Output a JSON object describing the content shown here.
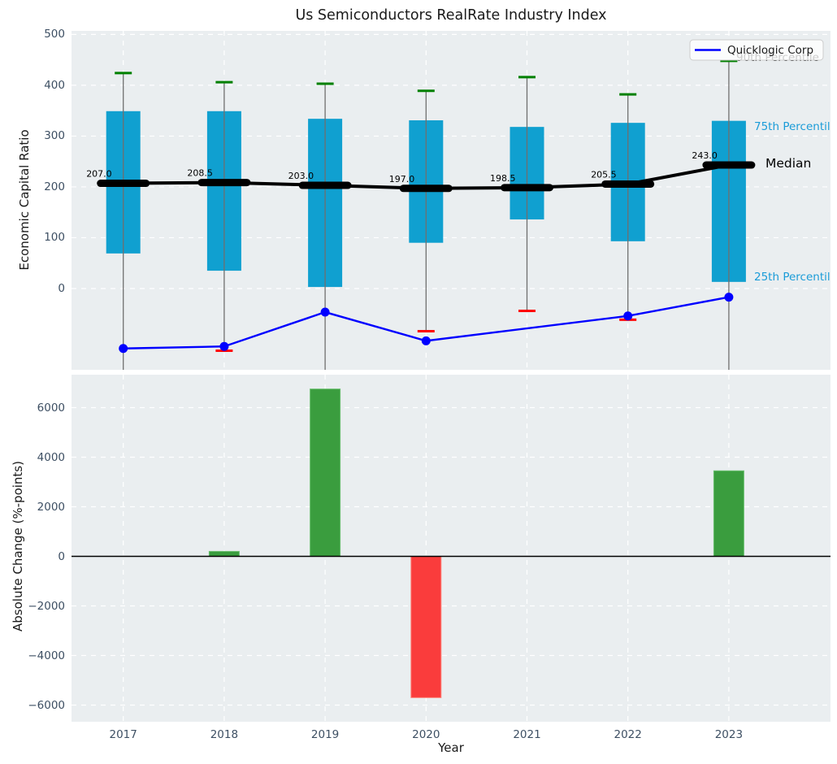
{
  "title": "Us Semiconductors RealRate Industry Index",
  "legend": {
    "label": "Quicklogic Corp"
  },
  "annotations": {
    "p90_label": "90th Percentile",
    "p75_label": "75th Percentile",
    "median_label": "Median",
    "p25_label": "25th Percentile"
  },
  "axes": {
    "top": {
      "ylabel": "Economic Capital Ratio",
      "ytick_labels": [
        "0",
        "100",
        "200",
        "300",
        "400",
        "500"
      ],
      "ytick_values": [
        0,
        100,
        200,
        300,
        400,
        500
      ]
    },
    "bottom": {
      "ylabel": "Absolute Change (%-points)",
      "xlabel": "Year",
      "ytick_labels": [
        "−6000",
        "−4000",
        "−2000",
        "0",
        "2000",
        "4000",
        "6000"
      ],
      "ytick_values": [
        -6000,
        -4000,
        -2000,
        0,
        2000,
        4000,
        6000
      ],
      "xtick_labels": [
        "2017",
        "2018",
        "2019",
        "2020",
        "2021",
        "2022",
        "2023"
      ]
    }
  },
  "colors": {
    "axes_bg": "#eaeef0",
    "grid": "#ffffff",
    "box_fill": "#10a0d0",
    "whisker": "#6f6f6f",
    "cap_high": "#008000",
    "cap_low": "#ff0000",
    "median": "#000000",
    "company_line": "#0000ff",
    "bar_positive": "#3a9d3e",
    "bar_positive_edge": "#6abf6e",
    "bar_negative": "#fa3c3c",
    "bar_negative_edge": "#ff8077",
    "tick_text": "#3d4f63",
    "annotation_cyan": "#1b9cd8",
    "annotation_gray_behind_legend": "#000000",
    "zero_line": "#000000"
  },
  "chart_data": [
    {
      "type": "boxplot+line",
      "title": "Us Semiconductors RealRate Industry Index",
      "ylabel": "Economic Capital Ratio",
      "categories": [
        2017,
        2018,
        2019,
        2020,
        2021,
        2022,
        2023
      ],
      "ylim": [
        -160,
        507
      ],
      "grid": true,
      "box": {
        "p90": [
          424,
          406,
          403,
          389,
          416,
          382,
          448
        ],
        "p75": [
          349,
          349,
          334,
          331,
          318,
          326,
          330
        ],
        "median": [
          207.0,
          208.5,
          203.0,
          197.0,
          198.5,
          205.5,
          243.0
        ],
        "p25": [
          69,
          35,
          3,
          90,
          136,
          93,
          13
        ],
        "p10": [
          null,
          -122.5,
          null,
          -84,
          -44,
          -61.5,
          null
        ]
      },
      "median_labels": [
        "207.0",
        "208.5",
        "203.0",
        "197.0",
        "198.5",
        "205.5",
        "243.0"
      ],
      "line_series": {
        "name": "Quicklogic Corp",
        "values": [
          -118,
          -114,
          -46.5,
          -103,
          null,
          -54,
          -17
        ]
      },
      "legend_position": "upper right"
    },
    {
      "type": "bar",
      "ylabel": "Absolute Change (%-points)",
      "xlabel": "Year",
      "categories": [
        2017,
        2018,
        2019,
        2020,
        2021,
        2022,
        2023
      ],
      "values": [
        null,
        200,
        6750,
        -5700,
        null,
        null,
        3450
      ],
      "ylim": [
        -6672,
        7328
      ],
      "grid": true
    }
  ]
}
